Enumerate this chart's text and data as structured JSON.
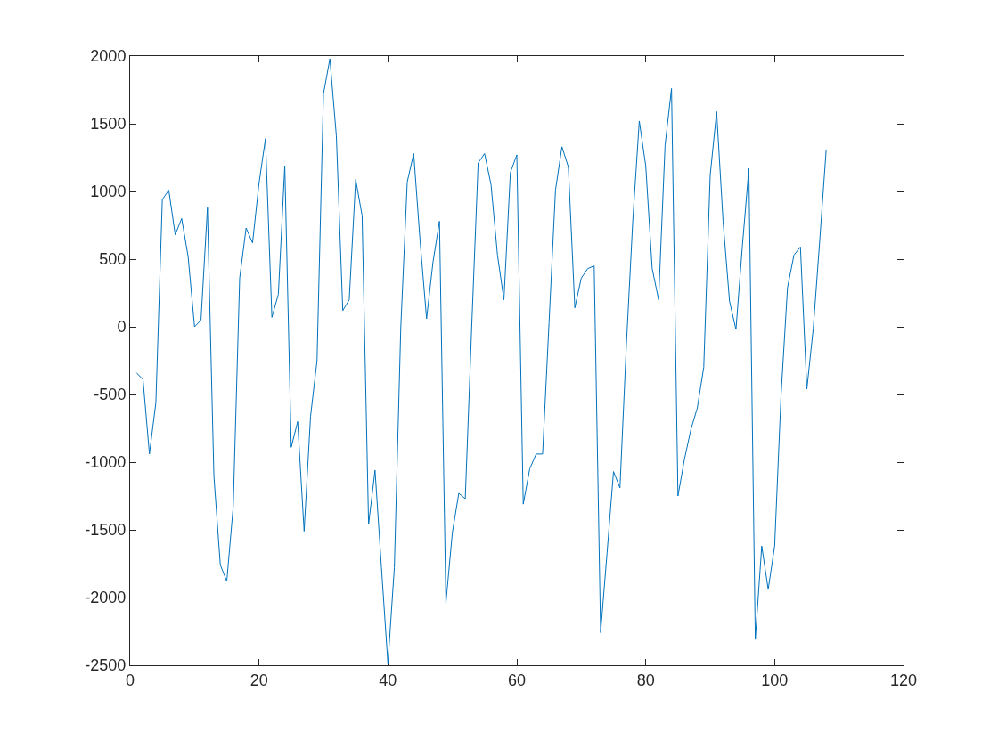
{
  "chart_data": {
    "type": "line",
    "x": [
      1,
      2,
      3,
      4,
      5,
      6,
      7,
      8,
      9,
      10,
      11,
      12,
      13,
      14,
      15,
      16,
      17,
      18,
      19,
      20,
      21,
      22,
      23,
      24,
      25,
      26,
      27,
      28,
      29,
      30,
      31,
      32,
      33,
      34,
      35,
      36,
      37,
      38,
      39,
      40,
      41,
      42,
      43,
      44,
      45,
      46,
      47,
      48,
      49,
      50,
      51,
      52,
      53,
      54,
      55,
      56,
      57,
      58,
      59,
      60,
      61,
      62,
      63,
      64,
      65,
      66,
      67,
      68,
      69,
      70,
      71,
      72,
      73,
      74,
      75,
      76,
      77,
      78,
      79,
      80,
      81,
      82,
      83,
      84,
      85,
      86,
      87,
      88,
      89,
      90,
      91,
      92,
      93,
      94,
      95,
      96,
      97,
      98,
      99,
      100,
      101,
      102,
      103,
      104,
      105,
      106,
      107,
      108
    ],
    "series": [
      {
        "color": "#0072bd",
        "values": [
          -340,
          -390,
          -940,
          -560,
          940,
          1010,
          680,
          800,
          520,
          0,
          50,
          880,
          -1100,
          -1760,
          -1880,
          -1330,
          360,
          730,
          620,
          1060,
          1390,
          70,
          240,
          1190,
          -890,
          -700,
          -1510,
          -660,
          -250,
          1720,
          1980,
          1410,
          120,
          200,
          1090,
          820,
          -1460,
          -1060,
          -1780,
          -2490,
          -1780,
          0,
          1070,
          1280,
          630,
          60,
          480,
          780,
          -2040,
          -1520,
          -1230,
          -1270,
          0,
          1210,
          1280,
          1050,
          530,
          200,
          1140,
          1270,
          -1310,
          -1050,
          -940,
          -940,
          30,
          1010,
          1330,
          1180,
          140,
          360,
          430,
          450,
          -2260,
          -1670,
          -1070,
          -1190,
          -130,
          790,
          1520,
          1190,
          430,
          200,
          1340,
          1760,
          -1250,
          -980,
          -760,
          -600,
          -300,
          1120,
          1590,
          780,
          190,
          -20,
          600,
          1170,
          -2310,
          -1620,
          -1940,
          -1620,
          -500,
          290,
          530,
          590,
          -460,
          -10,
          640,
          1310
        ]
      }
    ],
    "xlim": [
      0,
      120
    ],
    "xticks": [
      0,
      20,
      40,
      60,
      80,
      100,
      120
    ],
    "ylim": [
      -2500,
      2000
    ],
    "yticks": [
      -2500,
      -2000,
      -1500,
      -1000,
      -500,
      0,
      500,
      1000,
      1500,
      2000
    ],
    "line_style": "solid"
  }
}
